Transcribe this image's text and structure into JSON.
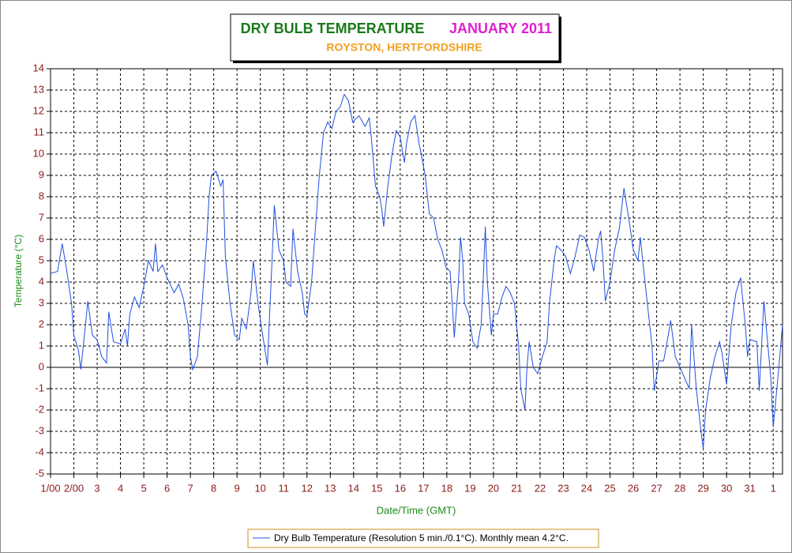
{
  "chart_data": {
    "type": "line",
    "title": "DRY BULB TEMPERATURE",
    "title_month": "JANUARY 2011",
    "subtitle": "ROYSTON, HERTFORDSHIRE",
    "xlabel": "Date/Time (GMT)",
    "ylabel": "Temperature (°C)",
    "grid": true,
    "xlim": [
      0,
      31.4
    ],
    "ylim": [
      -5,
      14
    ],
    "yticks": [
      -5,
      -4,
      -3,
      -2,
      -1,
      0,
      1,
      2,
      3,
      4,
      5,
      6,
      7,
      8,
      9,
      10,
      11,
      12,
      13,
      14
    ],
    "xticks": [
      {
        "value": 0,
        "label": "1/00"
      },
      {
        "value": 1,
        "label": "2/00"
      },
      {
        "value": 2,
        "label": "3"
      },
      {
        "value": 3,
        "label": "4"
      },
      {
        "value": 4,
        "label": "5"
      },
      {
        "value": 5,
        "label": "6"
      },
      {
        "value": 6,
        "label": "7"
      },
      {
        "value": 7,
        "label": "8"
      },
      {
        "value": 8,
        "label": "9"
      },
      {
        "value": 9,
        "label": "10"
      },
      {
        "value": 10,
        "label": "11"
      },
      {
        "value": 11,
        "label": "12"
      },
      {
        "value": 12,
        "label": "13"
      },
      {
        "value": 13,
        "label": "14"
      },
      {
        "value": 14,
        "label": "15"
      },
      {
        "value": 15,
        "label": "16"
      },
      {
        "value": 16,
        "label": "17"
      },
      {
        "value": 17,
        "label": "18"
      },
      {
        "value": 18,
        "label": "19"
      },
      {
        "value": 19,
        "label": "20"
      },
      {
        "value": 20,
        "label": "21"
      },
      {
        "value": 21,
        "label": "22"
      },
      {
        "value": 22,
        "label": "23"
      },
      {
        "value": 23,
        "label": "24"
      },
      {
        "value": 24,
        "label": "25"
      },
      {
        "value": 25,
        "label": "26"
      },
      {
        "value": 26,
        "label": "27"
      },
      {
        "value": 27,
        "label": "28"
      },
      {
        "value": 28,
        "label": "29"
      },
      {
        "value": 29,
        "label": "30"
      },
      {
        "value": 30,
        "label": "31"
      },
      {
        "value": 31,
        "label": "1"
      }
    ],
    "series": [
      {
        "name": "Dry Bulb Temperature (Resolution 5 min./0.1°C). Monthly mean 4.2°C.",
        "color": "#2050e0",
        "x": [
          0,
          0.3,
          0.5,
          0.7,
          0.9,
          1.0,
          1.2,
          1.3,
          1.5,
          1.6,
          1.8,
          2.0,
          2.2,
          2.4,
          2.5,
          2.7,
          3.0,
          3.2,
          3.3,
          3.4,
          3.6,
          3.8,
          4.0,
          4.2,
          4.4,
          4.5,
          4.6,
          4.8,
          5.0,
          5.3,
          5.5,
          5.7,
          5.9,
          6.0,
          6.1,
          6.3,
          6.5,
          6.7,
          6.8,
          6.9,
          7.1,
          7.3,
          7.4,
          7.5,
          7.7,
          7.9,
          8.1,
          8.2,
          8.4,
          8.6,
          8.7,
          8.9,
          9.1,
          9.3,
          9.4,
          9.5,
          9.6,
          9.8,
          10.0,
          10.1,
          10.3,
          10.4,
          10.6,
          10.8,
          10.9,
          11.0,
          11.2,
          11.36,
          11.53,
          11.71,
          11.89,
          12.07,
          12.25,
          12.42,
          12.6,
          12.78,
          12.96,
          13.23,
          13.49,
          13.67,
          13.76,
          13.94,
          14.12,
          14.2,
          14.29,
          14.47,
          14.65,
          14.83,
          15.0,
          15.18,
          15.27,
          15.45,
          15.63,
          15.81,
          15.9,
          16.07,
          16.25,
          16.43,
          16.61,
          16.79,
          16.96,
          17.14,
          17.23,
          17.32,
          17.5,
          17.59,
          17.68,
          17.76,
          17.94,
          18.12,
          18.3,
          18.47,
          18.56,
          18.65,
          18.74,
          18.91,
          19.0,
          19.18,
          19.37,
          19.54,
          19.72,
          19.9,
          20.08,
          20.17,
          20.35,
          20.44,
          20.53,
          20.71,
          20.9,
          21.1,
          21.3,
          21.4,
          21.6,
          21.7,
          21.9,
          22.1,
          22.3,
          22.5,
          22.7,
          22.9,
          23.1,
          23.3,
          23.5,
          23.6,
          23.7,
          23.8,
          24.0,
          24.2,
          24.4,
          24.6,
          24.8,
          25.0,
          25.2,
          25.3,
          25.4,
          25.6,
          25.8,
          25.9,
          26.1,
          26.3,
          26.5,
          26.6,
          26.8,
          27.0,
          27.2,
          27.4,
          27.5,
          27.6,
          27.7,
          27.9,
          28.0,
          28.1,
          28.3,
          28.5,
          28.7,
          28.8,
          29.0,
          29.2,
          29.4,
          29.6,
          29.8,
          29.9,
          30.0,
          30.3,
          30.4,
          30.6,
          30.9,
          31.0,
          31.2,
          31.4
        ],
        "values": [
          4.4,
          4.5,
          5.8,
          4.5,
          3,
          1.5,
          0.8,
          -0.1,
          2,
          3.1,
          1.5,
          1.3,
          0.5,
          0.2,
          2.6,
          1.2,
          1.1,
          1.8,
          1.0,
          2.5,
          3.3,
          2.8,
          3.8,
          5,
          4.5,
          5.8,
          4.5,
          4.8,
          4.2,
          3.5,
          3.9,
          3.2,
          2,
          0.5,
          -0.1,
          0.5,
          3,
          6,
          8,
          9,
          9.2,
          8.5,
          8.8,
          5.2,
          3,
          1.5,
          1.3,
          2.3,
          1.8,
          3.5,
          5,
          3,
          1.5,
          0.1,
          2.5,
          5,
          7.6,
          5.5,
          5,
          4,
          3.8,
          6.5,
          4.5,
          3.5,
          2.5,
          2.4,
          4,
          6.5,
          9,
          11,
          11.5,
          11.2,
          12,
          12.2,
          12.8,
          12.5,
          11.5,
          11.8,
          11.3,
          11.7,
          10.8,
          8.5,
          8,
          7.5,
          6.6,
          8.5,
          10,
          11.1,
          10.8,
          9.6,
          10.5,
          11.5,
          11.8,
          10.5,
          10,
          9,
          7.2,
          7,
          6,
          5.5,
          4.7,
          4.5,
          3,
          1.4,
          4,
          6.1,
          5,
          3,
          2.5,
          1.2,
          0.9,
          2,
          4,
          6.6,
          4,
          1.5,
          2.5,
          2.5,
          3.3,
          3.8,
          3.5,
          3,
          1,
          -1,
          -2,
          0,
          1.2,
          0,
          -0.3,
          0.5,
          1.2,
          3,
          5,
          5.7,
          5.5,
          5.2,
          4.4,
          5.2,
          6.2,
          6.1,
          5.5,
          4.5,
          6,
          6.4,
          5,
          3.1,
          4,
          5.5,
          6.5,
          8.4,
          7,
          5.5,
          5,
          6.1,
          5,
          3,
          1,
          -1.1,
          0.3,
          0.3,
          1.5,
          2.2,
          0.5,
          0,
          -0.5,
          -1,
          2,
          0.5,
          -1,
          -3,
          -3.8,
          -2,
          -0.5,
          0.5,
          1.2,
          0.7,
          -0.8,
          2,
          3.5,
          4.2,
          2,
          0.5,
          1.3,
          1.2,
          -1.1,
          3.1,
          -0.5,
          -2.8,
          -0.5,
          2
        ]
      }
    ]
  }
}
